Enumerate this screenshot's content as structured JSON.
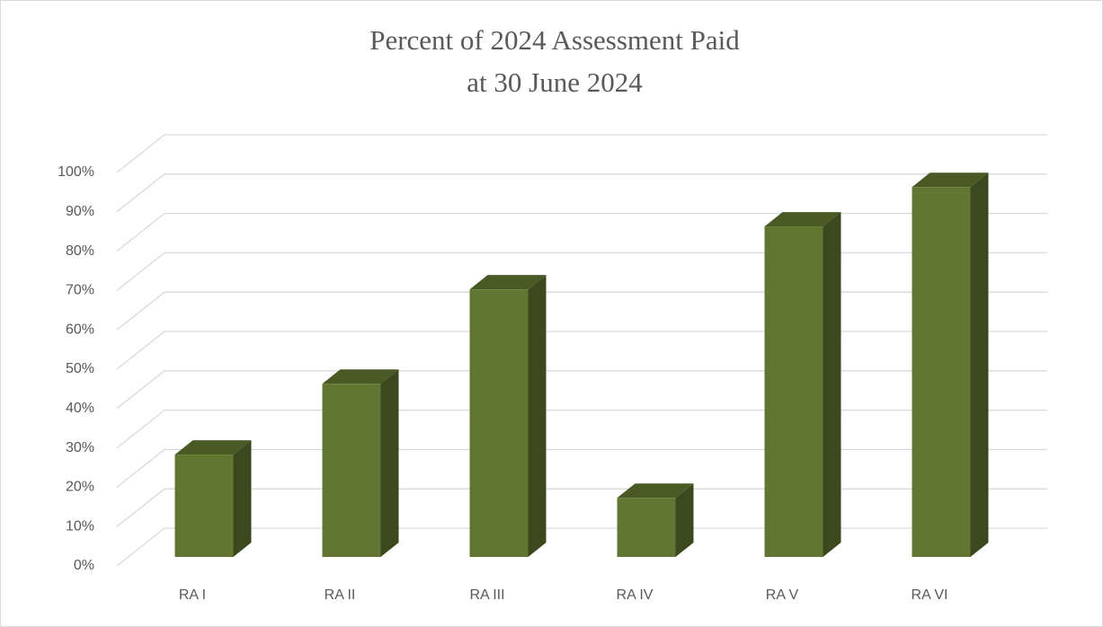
{
  "chart_data": {
    "type": "bar3d",
    "title": [
      "Percent of 2024 Assessment Paid",
      "at 30 June 2024"
    ],
    "categories": [
      "RA I",
      "RA II",
      "RA III",
      "RA IV",
      "RA V",
      "RA VI"
    ],
    "values": [
      26,
      44,
      68,
      15,
      84,
      94
    ],
    "color": "#617630",
    "ylim": [
      0,
      100
    ],
    "yticks": [
      {
        "value": 0,
        "label": "0%"
      },
      {
        "value": 10,
        "label": "10%"
      },
      {
        "value": 20,
        "label": "20%"
      },
      {
        "value": 30,
        "label": "30%"
      },
      {
        "value": 40,
        "label": "40%"
      },
      {
        "value": 50,
        "label": "50%"
      },
      {
        "value": 60,
        "label": "60%"
      },
      {
        "value": 70,
        "label": "70%"
      },
      {
        "value": 80,
        "label": "80%"
      },
      {
        "value": 90,
        "label": "90%"
      },
      {
        "value": 100,
        "label": "100%"
      }
    ],
    "grid": true
  }
}
